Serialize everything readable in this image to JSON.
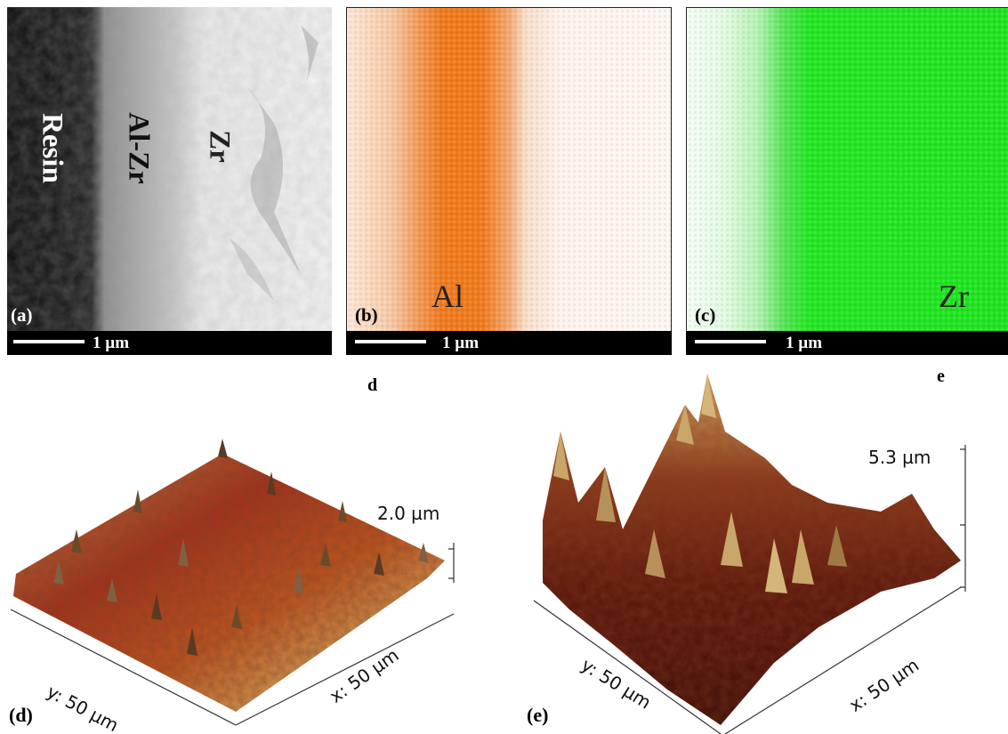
{
  "panels": {
    "a": {
      "label": "(a)",
      "scale": "1 µm",
      "regions": [
        "Resin",
        "Al-Zr",
        "Zr"
      ]
    },
    "b": {
      "label": "(b)",
      "scale": "1 µm",
      "element": "Al",
      "map_color": "#f07a1e"
    },
    "c": {
      "label": "(c)",
      "scale": "1 µm",
      "element": "Zr",
      "map_color": "#22e622"
    },
    "d": {
      "label": "(d)",
      "corner_letter": "d",
      "height_label": "2.0 µm",
      "y_axis": "y: 50 µm",
      "x_axis": "x: 50 µm"
    },
    "e": {
      "label": "(e)",
      "corner_letter": "e",
      "height_label": "5.3 µm",
      "y_axis": "y: 50 µm",
      "x_axis": "x: 50 µm"
    }
  },
  "colors": {
    "afm_dark": "#3a0c05",
    "afm_mid": "#a3301a",
    "afm_light": "#e0b96a"
  }
}
